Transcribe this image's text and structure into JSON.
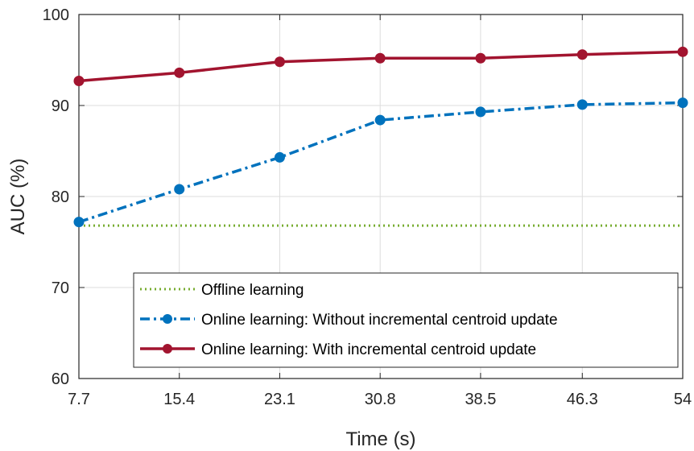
{
  "chart_data": {
    "type": "line",
    "title": "",
    "xlabel": "Time (s)",
    "ylabel": "AUC (%)",
    "x": [
      7.7,
      15.4,
      23.1,
      30.8,
      38.5,
      46.3,
      54
    ],
    "x_tick_labels": [
      "7.7",
      "15.4",
      "23.1",
      "30.8",
      "38.5",
      "46.3",
      "54"
    ],
    "y_ticks": [
      60,
      70,
      80,
      90,
      100
    ],
    "y_tick_labels": [
      "60",
      "70",
      "80",
      "90",
      "100"
    ],
    "xlim": [
      7.7,
      54
    ],
    "ylim": [
      60,
      100
    ],
    "grid": true,
    "legend_position": "lower-right",
    "series": [
      {
        "name": "Offline learning",
        "color": "#77AC30",
        "style": "dotted",
        "marker": "none",
        "values": [
          76.8,
          76.8,
          76.8,
          76.8,
          76.8,
          76.8,
          76.8
        ]
      },
      {
        "name": "Online learning: Without incremental centroid update",
        "color": "#0072BD",
        "style": "dash-dot",
        "marker": "circle",
        "values": [
          77.2,
          80.8,
          84.3,
          88.4,
          89.3,
          90.1,
          90.3
        ]
      },
      {
        "name": "Online learning: With incremental centroid update",
        "color": "#A2142F",
        "style": "solid",
        "marker": "circle",
        "values": [
          92.7,
          93.6,
          94.8,
          95.2,
          95.2,
          95.6,
          95.9
        ]
      }
    ]
  }
}
